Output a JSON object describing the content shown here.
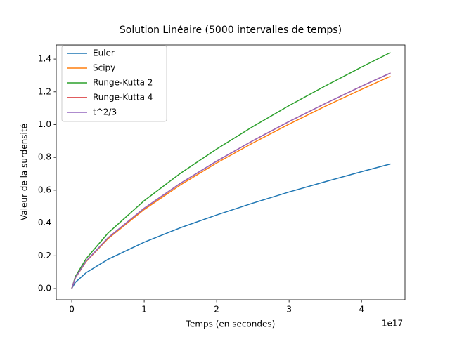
{
  "chart_data": {
    "type": "line",
    "title": "Solution Linéaire (5000 intervalles de temps)",
    "x_label": "Temps (en secondes)",
    "y_label": "Valeur de la surdensité",
    "x_offset_label": "1e17",
    "x": [
      0,
      0.05,
      0.2,
      0.5,
      1,
      1.5,
      2,
      2.5,
      3,
      3.5,
      4,
      4.4
    ],
    "series": [
      {
        "name": "Euler",
        "color": "#1f77b4",
        "values": [
          0,
          0.038,
          0.097,
          0.178,
          0.283,
          0.371,
          0.449,
          0.521,
          0.589,
          0.652,
          0.713,
          0.76
        ]
      },
      {
        "name": "Scipy",
        "color": "#ff7f0e",
        "values": [
          0,
          0.065,
          0.165,
          0.304,
          0.482,
          0.632,
          0.766,
          0.888,
          1.003,
          1.112,
          1.215,
          1.295
        ]
      },
      {
        "name": "Runge-Kutta 2",
        "color": "#2ca02c",
        "values": [
          0,
          0.073,
          0.183,
          0.338,
          0.536,
          0.703,
          0.851,
          0.988,
          1.116,
          1.236,
          1.351,
          1.44
        ]
      },
      {
        "name": "Runge-Kutta 4",
        "color": "#d62728",
        "values": [
          0,
          0.066,
          0.168,
          0.309,
          0.49,
          0.642,
          0.777,
          0.902,
          1.019,
          1.129,
          1.234,
          1.315
        ]
      },
      {
        "name": "t^2/3",
        "color": "#9467bd",
        "values": [
          0,
          0.066,
          0.168,
          0.309,
          0.49,
          0.642,
          0.777,
          0.902,
          1.019,
          1.129,
          1.234,
          1.315
        ]
      }
    ],
    "xlim": [
      -0.214,
      4.6
    ],
    "ylim": [
      -0.0685,
      1.486
    ],
    "xticks": [
      0,
      1,
      2,
      3,
      4
    ],
    "yticks": [
      {
        "value": 0,
        "label": "0.0"
      },
      {
        "value": 0.2,
        "label": "0.2"
      },
      {
        "value": 0.4,
        "label": "0.4"
      },
      {
        "value": 0.6,
        "label": "0.6"
      },
      {
        "value": 0.8,
        "label": "0.8"
      },
      {
        "value": 1.0,
        "label": "1.0"
      },
      {
        "value": 1.2,
        "label": "1.2"
      },
      {
        "value": 1.4,
        "label": "1.4"
      }
    ],
    "grid": false,
    "legend": "upper left"
  }
}
